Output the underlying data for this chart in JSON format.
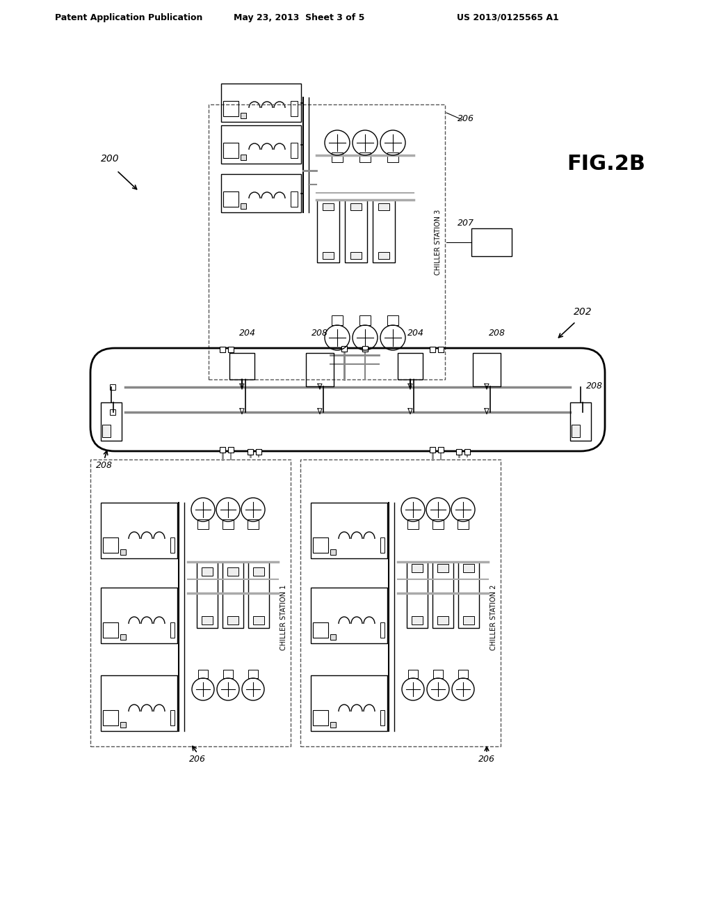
{
  "title_left": "Patent Application Publication",
  "title_center": "May 23, 2013  Sheet 3 of 5",
  "title_right": "US 2013/0125565 A1",
  "fig_label": "FIG.2B",
  "ref_200": "200",
  "ref_202": "202",
  "ref_204": "204",
  "ref_206": "206",
  "ref_207": "207",
  "ref_208": "208",
  "chiller_station_1": "CHILLER STATION 1",
  "chiller_station_2": "CHILLER STATION 2",
  "chiller_station_3": "CHILLER STATION 3",
  "bg_color": "#ffffff",
  "line_color": "#000000",
  "gray": "#999999",
  "dark_gray": "#555555"
}
